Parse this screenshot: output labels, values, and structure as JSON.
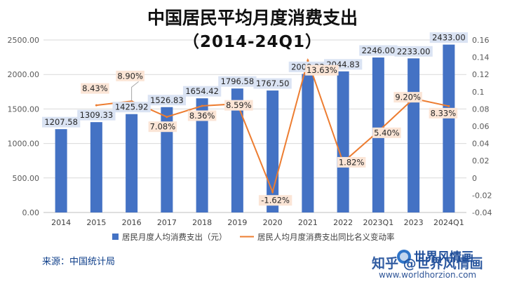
{
  "header": {
    "title": "中国居民平均月度消费支出",
    "subtitle": "（2014-24Q1）"
  },
  "source": "来源：中国统计局",
  "watermark": {
    "brand": "世界风情画",
    "zhihu": "知乎 @世界风情画",
    "url": "www.worldhorzion.com"
  },
  "colors": {
    "bar": "#4472c4",
    "line": "#ed7d31",
    "bar_label_bg": "#dae3f3",
    "line_label_bg": "#fbe5d6"
  },
  "chart_data": {
    "type": "bar+line",
    "categories": [
      "2014",
      "2015",
      "2016",
      "2017",
      "2018",
      "2019",
      "2020",
      "2021",
      "2022",
      "2023Q1",
      "2023",
      "2024Q1"
    ],
    "series": [
      {
        "name": "居民月度人均消费支出（元）",
        "type": "bar",
        "axis": "left",
        "values": [
          1207.58,
          1309.33,
          1425.92,
          1526.83,
          1654.42,
          1796.58,
          1767.5,
          2008.33,
          2044.83,
          2246.0,
          2233.0,
          2433.0
        ],
        "labels": [
          "1207.58",
          "1309.33",
          "1425.92",
          "1526.83",
          "1654.42",
          "1796.58",
          "1767.50",
          "2008.33",
          "2044.83",
          "2246.00",
          "2233.00",
          "2433.00"
        ]
      },
      {
        "name": "居民人均月度消费支出同比名义变动率",
        "type": "line",
        "axis": "right",
        "values": [
          null,
          0.0843,
          0.089,
          0.0708,
          0.0836,
          0.0859,
          -0.0162,
          0.1363,
          0.0182,
          0.054,
          0.092,
          0.0833
        ],
        "labels": [
          "",
          "8.43%",
          "8.90%",
          "7.08%",
          "8.36%",
          "8.59%",
          "-1.62%",
          "13.63%",
          "1.82%",
          "5.40%",
          "9.20%",
          "8.33%"
        ]
      }
    ],
    "y_left": {
      "lim": [
        0,
        2500
      ],
      "ticks": [
        "0.00",
        "500.00",
        "1000.00",
        "1500.00",
        "2000.00",
        "2500.00"
      ],
      "tick_values": [
        0,
        500,
        1000,
        1500,
        2000,
        2500
      ]
    },
    "y_right": {
      "lim": [
        -0.04,
        0.16
      ],
      "ticks": [
        "-0.04",
        "-0.02",
        "0",
        "0.02",
        "0.04",
        "0.06",
        "0.08",
        "0.1",
        "0.12",
        "0.14",
        "0.16"
      ],
      "tick_values": [
        -0.04,
        -0.02,
        0,
        0.02,
        0.04,
        0.06,
        0.08,
        0.1,
        0.12,
        0.14,
        0.16
      ]
    },
    "grid": true,
    "legend_position": "bottom"
  }
}
